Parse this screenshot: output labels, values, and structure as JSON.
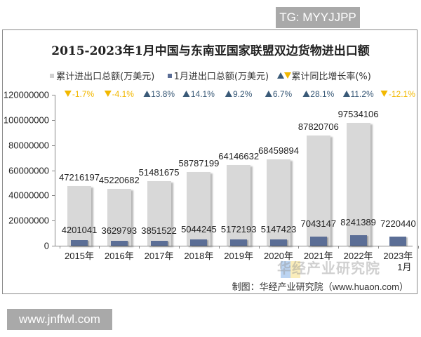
{
  "watermarks": {
    "tg": "TG: MYYJJPP",
    "site": "www.jnffwl.com",
    "huaon_logo_text": "华经产业研究院"
  },
  "chart": {
    "title": "2015-2023年1月中国与东南亚国家联盟双边货物进出口额",
    "legend": {
      "total": "累计进出口总额(万美元)",
      "jan": "1月进出口总额(万美元)",
      "growth": "累计同比增长率(%)"
    },
    "source": "制图：华经产业研究院（www.huaon.com）",
    "y_ticks": [
      "120000000",
      "100000000",
      "80000000",
      "60000000",
      "40000000",
      "20000000",
      "0"
    ],
    "categories": [
      "2015年",
      "2016年",
      "2017年",
      "2018年",
      "2019年",
      "2020年",
      "2021年",
      "2022年",
      "2023年\n1月"
    ],
    "growth": [
      {
        "text": "-1.7%",
        "dir": "down"
      },
      {
        "text": "-4.1%",
        "dir": "down"
      },
      {
        "text": "13.8%",
        "dir": "up"
      },
      {
        "text": "14.1%",
        "dir": "up"
      },
      {
        "text": "9.2%",
        "dir": "up"
      },
      {
        "text": "6.7%",
        "dir": "up"
      },
      {
        "text": "28.1%",
        "dir": "up"
      },
      {
        "text": "11.2%",
        "dir": "up"
      },
      {
        "text": "-12.1%",
        "dir": "down"
      }
    ],
    "total_labels": [
      "47216197",
      "45220682",
      "51481675",
      "58787199",
      "64146632",
      "68459894",
      "87820706",
      "97534106",
      ""
    ],
    "jan_labels": [
      "4201041",
      "3629793",
      "3851522",
      "5044245",
      "5172193",
      "5147423",
      "7043147",
      "8241389",
      "7220440"
    ],
    "colors": {
      "total_bar": "#d8d8d8",
      "jan_bar": "#5b6e96",
      "growth_up": "#3a5a78",
      "growth_down": "#f2b800"
    }
  },
  "chart_data": {
    "type": "bar",
    "title": "2015-2023年1月中国与东南亚国家联盟双边货物进出口额",
    "categories": [
      "2015年",
      "2016年",
      "2017年",
      "2018年",
      "2019年",
      "2020年",
      "2021年",
      "2022年",
      "2023年1月"
    ],
    "series": [
      {
        "name": "累计进出口总额(万美元)",
        "values": [
          47216197,
          45220682,
          51481675,
          58787199,
          64146632,
          68459894,
          87820706,
          97534106,
          null
        ]
      },
      {
        "name": "1月进出口总额(万美元)",
        "values": [
          4201041,
          3629793,
          3851522,
          5044245,
          5172193,
          5147423,
          7043147,
          8241389,
          7220440
        ]
      },
      {
        "name": "累计同比增长率(%)",
        "values": [
          -1.7,
          -4.1,
          13.8,
          14.1,
          9.2,
          6.7,
          28.1,
          11.2,
          -12.1
        ]
      }
    ],
    "xlabel": "",
    "ylabel": "",
    "ylim": [
      0,
      120000000
    ],
    "y_ticks": [
      0,
      20000000,
      40000000,
      60000000,
      80000000,
      100000000,
      120000000
    ],
    "grid": false,
    "legend_position": "top",
    "annotations": [
      "制图：华经产业研究院（www.huaon.com）"
    ]
  }
}
